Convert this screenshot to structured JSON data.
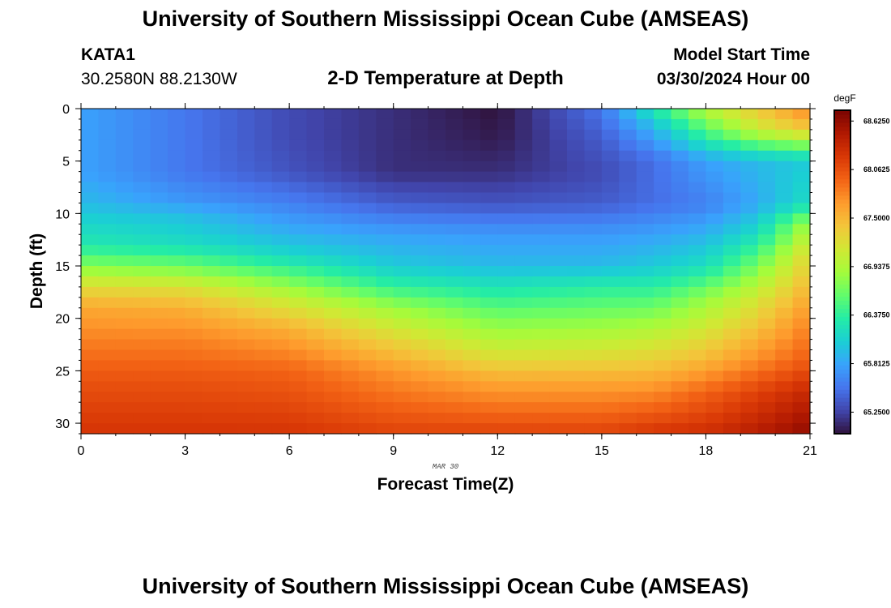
{
  "header": {
    "title": "University of Southern Mississippi Ocean Cube (AMSEAS)",
    "station": "KATA1",
    "coordinates": "30.2580N  88.2130W",
    "subtitle": "2-D Temperature at Depth",
    "start_label": "Model Start Time",
    "start_value": "03/30/2024 Hour 00"
  },
  "footer": {
    "title": "University of Southern Mississippi Ocean Cube (AMSEAS)"
  },
  "chart_data": {
    "type": "heatmap",
    "title": "2-D Temperature at Depth",
    "xlabel": "Forecast Time(Z)",
    "ylabel": "Depth (ft)",
    "x_sublabel": "MAR 30",
    "xlim": [
      0,
      21
    ],
    "ylim": [
      0,
      31
    ],
    "y_inverted": true,
    "xticks": [
      0,
      3,
      6,
      9,
      12,
      15,
      18,
      21
    ],
    "yticks": [
      0,
      5,
      10,
      15,
      20,
      25,
      30
    ],
    "colorbar": {
      "unit": "degF",
      "min": 65.0,
      "max": 68.75,
      "tick_values": [
        68.625,
        68.0625,
        67.5,
        66.9375,
        66.375,
        65.8125,
        65.25
      ],
      "tick_labels": [
        "68.6250",
        "68.0625",
        "67.5000",
        "66.9375",
        "66.3750",
        "65.8125",
        "65.2500"
      ],
      "colormap": [
        "#30123b",
        "#4145ab",
        "#4675ed",
        "#39a2fc",
        "#1bcfd4",
        "#24eca6",
        "#61fc6c",
        "#a4fc3b",
        "#d1e834",
        "#f3c63a",
        "#fe9b2d",
        "#f36315",
        "#d93806",
        "#b11901",
        "#7a0402"
      ]
    },
    "time_columns": {
      "start": 0,
      "end": 21,
      "count": 42
    },
    "depth_rows": {
      "start": 0,
      "end": 31,
      "count": 31
    },
    "profiles_degF": [
      {
        "t": 0,
        "depths": [
          0,
          6,
          9,
          10,
          13,
          15,
          17,
          19,
          22,
          26,
          31
        ],
        "temps": [
          65.8,
          65.8,
          65.95,
          66.05,
          66.3,
          66.75,
          67.25,
          67.6,
          67.8,
          68.05,
          68.25
        ]
      },
      {
        "t": 3,
        "depths": [
          0,
          6,
          9,
          10,
          13,
          15,
          17,
          19,
          22,
          26,
          31
        ],
        "temps": [
          65.55,
          65.55,
          65.75,
          65.95,
          66.2,
          66.65,
          67.2,
          67.55,
          67.8,
          68.05,
          68.25
        ]
      },
      {
        "t": 6,
        "depths": [
          0,
          3,
          6,
          9,
          12,
          14,
          16,
          18,
          21,
          25,
          31
        ],
        "temps": [
          65.3,
          65.3,
          65.35,
          65.6,
          65.9,
          66.15,
          66.6,
          67.05,
          67.55,
          67.95,
          68.25
        ]
      },
      {
        "t": 9,
        "depths": [
          0,
          3,
          6,
          9,
          12,
          15,
          17,
          19,
          22,
          25,
          31
        ],
        "temps": [
          65.15,
          65.15,
          65.15,
          65.4,
          65.8,
          66.05,
          66.4,
          66.85,
          67.3,
          67.7,
          68.15
        ]
      },
      {
        "t": 12,
        "depths": [
          0,
          3,
          6,
          9,
          12,
          15,
          17,
          20,
          23,
          26,
          31
        ],
        "temps": [
          65.0,
          65.05,
          65.15,
          65.35,
          65.75,
          65.95,
          66.25,
          66.7,
          67.1,
          67.6,
          68.15
        ]
      },
      {
        "t": 15,
        "depths": [
          0,
          3,
          6,
          9,
          12,
          15,
          17,
          20,
          23,
          26,
          31
        ],
        "temps": [
          65.55,
          65.4,
          65.3,
          65.4,
          65.75,
          65.95,
          66.35,
          66.75,
          67.15,
          67.6,
          68.15
        ]
      },
      {
        "t": 16.5,
        "depths": [
          0,
          2,
          5,
          9,
          12,
          15,
          18,
          21,
          24,
          27,
          31
        ],
        "temps": [
          66.3,
          65.9,
          65.5,
          65.5,
          65.8,
          66.05,
          66.5,
          66.95,
          67.35,
          67.75,
          68.25
        ]
      },
      {
        "t": 18,
        "depths": [
          0,
          2,
          5,
          9,
          12,
          15,
          18,
          21,
          24,
          27,
          31
        ],
        "temps": [
          67.0,
          66.55,
          65.8,
          65.6,
          65.9,
          66.2,
          66.8,
          67.15,
          67.5,
          67.95,
          68.3
        ]
      },
      {
        "t": 19.5,
        "depths": [
          0,
          2,
          5,
          9,
          12,
          15,
          18,
          21,
          24,
          27,
          31
        ],
        "temps": [
          67.4,
          67.1,
          65.95,
          65.85,
          66.2,
          66.7,
          67.15,
          67.45,
          67.75,
          68.15,
          68.45
        ]
      },
      {
        "t": 21,
        "depths": [
          0,
          2,
          5,
          9,
          11,
          14,
          17,
          20,
          24,
          27,
          31
        ],
        "temps": [
          67.8,
          67.4,
          66.05,
          66.2,
          66.9,
          67.3,
          67.5,
          67.75,
          68.0,
          68.35,
          68.65
        ]
      }
    ]
  }
}
